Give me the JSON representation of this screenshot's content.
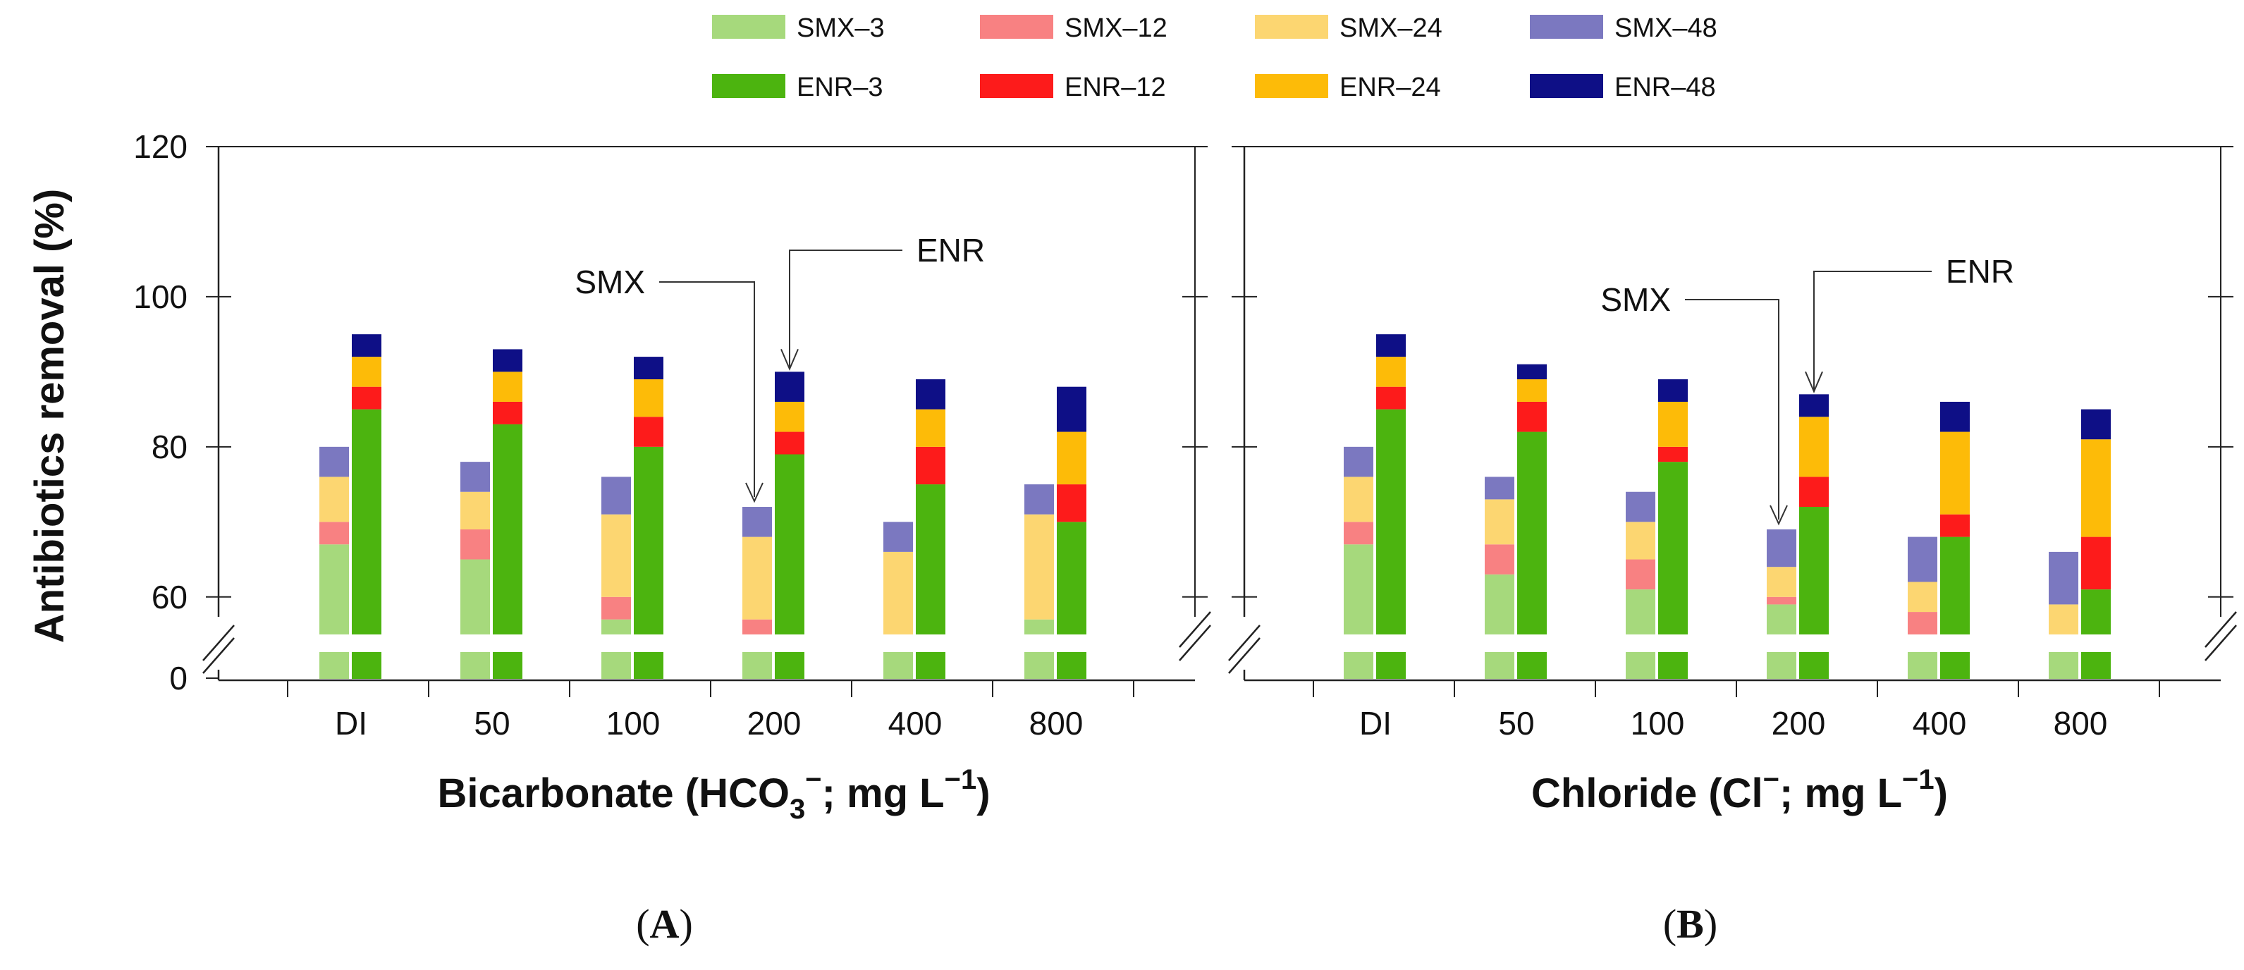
{
  "chart_data": [
    {
      "type": "bar",
      "panel": "A",
      "panel_label": "A",
      "title": "",
      "xlabel": {
        "main": "Bicarbonate (HCO",
        "sub": "3",
        "sup1": "−",
        "mid": "; mg L",
        "sup2": "−1",
        "end": ")"
      },
      "ylabel": "Antibiotics removal (%)",
      "categories": [
        "DI",
        "50",
        "100",
        "200",
        "400",
        "800"
      ],
      "ylim": [
        55,
        120
      ],
      "broken_axis": {
        "break_at": 55,
        "lower_tick": "0"
      },
      "yticks": [
        "60",
        "80",
        "100",
        "120"
      ],
      "series": [
        {
          "name": "SMX–3",
          "values": [
            67,
            65,
            57,
            55,
            55,
            57
          ]
        },
        {
          "name": "SMX–12",
          "values": [
            70,
            69,
            60,
            57,
            55,
            57
          ]
        },
        {
          "name": "SMX–24",
          "values": [
            76,
            74,
            71,
            68,
            66,
            71
          ]
        },
        {
          "name": "SMX–48",
          "values": [
            80,
            78,
            76,
            72,
            70,
            75
          ]
        },
        {
          "name": "ENR–3",
          "values": [
            85,
            83,
            80,
            79,
            75,
            70
          ]
        },
        {
          "name": "ENR–12",
          "values": [
            88,
            86,
            84,
            82,
            80,
            75
          ]
        },
        {
          "name": "ENR–24",
          "values": [
            92,
            90,
            89,
            86,
            85,
            82
          ]
        },
        {
          "name": "ENR–48",
          "values": [
            95,
            93,
            92,
            90,
            89,
            88
          ]
        }
      ],
      "annotations": [
        {
          "text": "SMX",
          "target": "200",
          "compound": "SMX"
        },
        {
          "text": "ENR",
          "target": "200",
          "compound": "ENR"
        }
      ]
    },
    {
      "type": "bar",
      "panel": "B",
      "panel_label": "B",
      "title": "",
      "xlabel": {
        "main": "Chloride (Cl",
        "sub": "",
        "sup1": "−",
        "mid": "; mg L",
        "sup2": "−1",
        "end": ")"
      },
      "ylabel": "",
      "categories": [
        "DI",
        "50",
        "100",
        "200",
        "400",
        "800"
      ],
      "ylim": [
        55,
        120
      ],
      "broken_axis": {
        "break_at": 55,
        "lower_tick": ""
      },
      "yticks": [],
      "series": [
        {
          "name": "SMX–3",
          "values": [
            67,
            63,
            61,
            59,
            55,
            55
          ]
        },
        {
          "name": "SMX–12",
          "values": [
            70,
            67,
            65,
            60,
            58,
            55
          ]
        },
        {
          "name": "SMX–24",
          "values": [
            76,
            73,
            70,
            64,
            62,
            59
          ]
        },
        {
          "name": "SMX–48",
          "values": [
            80,
            76,
            74,
            69,
            68,
            66
          ]
        },
        {
          "name": "ENR–3",
          "values": [
            85,
            82,
            78,
            72,
            68,
            61
          ]
        },
        {
          "name": "ENR–12",
          "values": [
            88,
            86,
            80,
            76,
            71,
            68
          ]
        },
        {
          "name": "ENR–24",
          "values": [
            92,
            89,
            86,
            84,
            82,
            81
          ]
        },
        {
          "name": "ENR–48",
          "values": [
            95,
            91,
            89,
            87,
            86,
            85
          ]
        }
      ],
      "annotations": [
        {
          "text": "SMX",
          "target": "200",
          "compound": "SMX"
        },
        {
          "text": "ENR",
          "target": "200",
          "compound": "ENR"
        }
      ]
    }
  ],
  "legend": {
    "placement": "top-center",
    "items": [
      {
        "label": "SMX–3",
        "color": "#a6d97c"
      },
      {
        "label": "SMX–12",
        "color": "#f88182"
      },
      {
        "label": "SMX–24",
        "color": "#fcd671"
      },
      {
        "label": "SMX–48",
        "color": "#7b78c0"
      },
      {
        "label": "ENR–3",
        "color": "#4cb40f"
      },
      {
        "label": "ENR–12",
        "color": "#fd1b1b"
      },
      {
        "label": "ENR–24",
        "color": "#fdbb08"
      },
      {
        "label": "ENR–48",
        "color": "#0e0f86"
      }
    ]
  }
}
